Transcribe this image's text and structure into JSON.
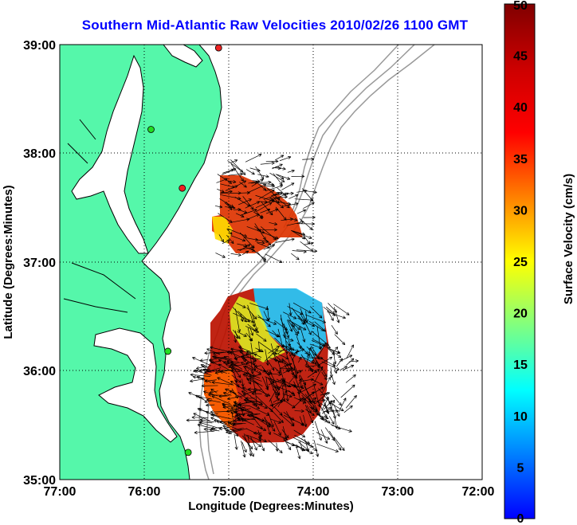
{
  "title": "Southern Mid-Atlantic Raw Velocities 2010/02/26 1100 GMT",
  "xlabel": "Longitude (Degrees:Minutes)",
  "ylabel": "Latitude (Degrees:Minutes)",
  "x_ticks": [
    "77:00",
    "76:00",
    "75:00",
    "74:00",
    "73:00",
    "72:00"
  ],
  "y_ticks": [
    "39:00",
    "38:00",
    "37:00",
    "36:00",
    "35:00"
  ],
  "colorbar": {
    "label": "Surface Velocity (cm/s)",
    "ticks": [
      "0",
      "5",
      "10",
      "15",
      "20",
      "25",
      "30",
      "35",
      "40",
      "45",
      "50"
    ],
    "range": [
      0,
      50
    ]
  },
  "colors": {
    "land": "#55f7aa",
    "ocean": "#ffffff",
    "coast": "#000000",
    "bathymetry": "#999999",
    "title": "#0000ff",
    "station_ok": "#22dd22",
    "station_off": "#ee2222"
  },
  "chart_data": {
    "type": "map",
    "xlim": [
      -77,
      -72
    ],
    "ylim": [
      35,
      39
    ],
    "grid": "dotted",
    "stations": [
      {
        "lon": -75.12,
        "lat": 38.97,
        "status": "off"
      },
      {
        "lon": -75.92,
        "lat": 38.22,
        "status": "ok"
      },
      {
        "lon": -75.55,
        "lat": 37.68,
        "status": "off"
      },
      {
        "lon": -75.72,
        "lat": 36.18,
        "status": "ok"
      },
      {
        "lon": -75.48,
        "lat": 35.25,
        "status": "ok"
      }
    ]
  }
}
